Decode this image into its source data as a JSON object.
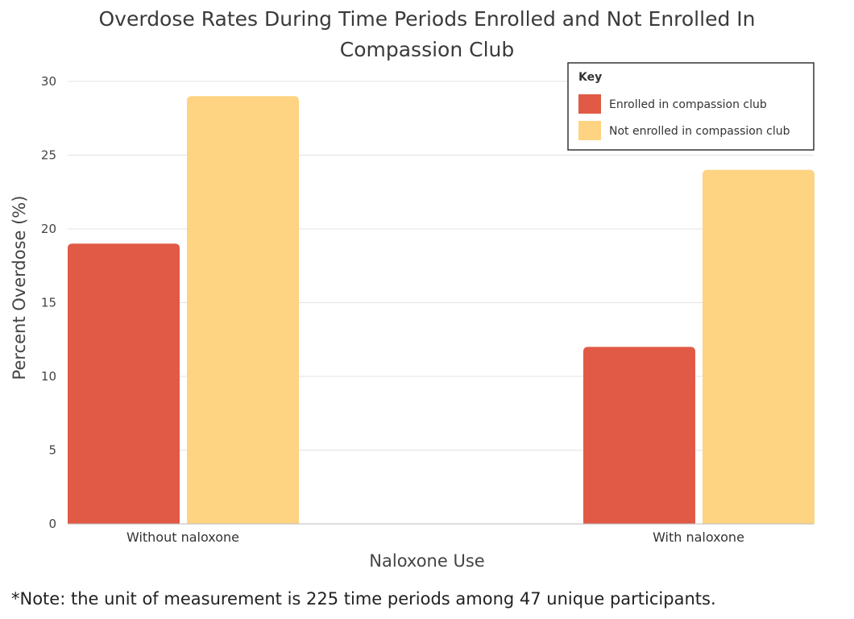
{
  "chart_data": {
    "type": "bar",
    "title_lines": [
      "Overdose Rates During Time Periods Enrolled and Not Enrolled In",
      "Compassion Club"
    ],
    "xlabel": "Naloxone Use",
    "ylabel": "Percent Overdose (%)",
    "categories": [
      "Without naloxone",
      "With naloxone"
    ],
    "series": [
      {
        "name": "Enrolled in compassion club",
        "values": [
          19,
          12
        ],
        "color": "#e05a45"
      },
      {
        "name": "Not enrolled in compassion club",
        "values": [
          29,
          24
        ],
        "color": "#fed382"
      }
    ],
    "ylim": [
      0,
      30
    ],
    "yticks": [
      0,
      5,
      10,
      15,
      20,
      25,
      30
    ],
    "grid": true,
    "legend": {
      "title": "Key",
      "position": "top-right"
    }
  },
  "note": "*Note: the unit of measurement is 225 time periods among 47 unique participants."
}
